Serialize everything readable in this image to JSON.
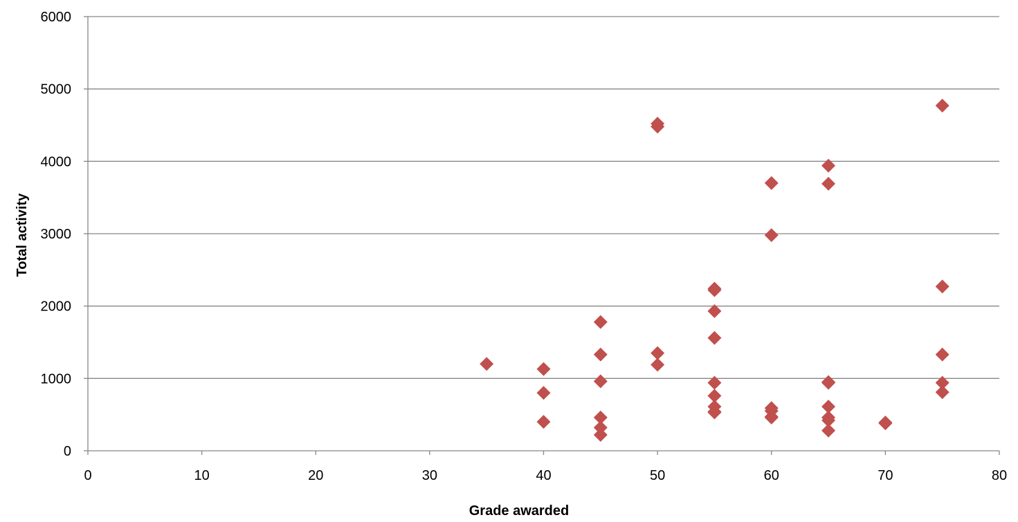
{
  "chart_data": {
    "type": "scatter",
    "title": "",
    "xlabel": "Grade awarded",
    "ylabel": "Total activity",
    "xlim": [
      0,
      80
    ],
    "ylim": [
      0,
      6000
    ],
    "x_ticks": [
      "0",
      "10",
      "20",
      "30",
      "40",
      "50",
      "60",
      "70",
      "80"
    ],
    "y_ticks": [
      "0",
      "1000",
      "2000",
      "3000",
      "4000",
      "5000",
      "6000"
    ],
    "grid": "horizontal",
    "legend": "none",
    "marker": "diamond",
    "marker_color": "#C0504D",
    "series": [
      {
        "x": [
          35,
          40,
          40,
          40,
          45,
          45,
          45,
          45,
          45,
          45,
          50,
          50,
          50,
          50,
          55,
          55,
          55,
          55,
          55,
          55,
          55,
          55,
          55,
          60,
          60,
          60,
          60,
          60,
          60,
          65,
          65,
          65,
          65,
          65,
          65,
          65,
          65,
          70,
          70,
          75,
          75,
          75,
          75,
          75
        ],
        "y": [
          1200,
          1130,
          800,
          400,
          1780,
          1330,
          960,
          460,
          320,
          220,
          4520,
          4480,
          1350,
          1190,
          2240,
          2220,
          1930,
          1560,
          940,
          760,
          610,
          540,
          530,
          3700,
          2980,
          590,
          550,
          470,
          460,
          3940,
          3690,
          950,
          940,
          610,
          460,
          420,
          280,
          390,
          380,
          4770,
          2270,
          1330,
          940,
          810
        ]
      }
    ]
  }
}
